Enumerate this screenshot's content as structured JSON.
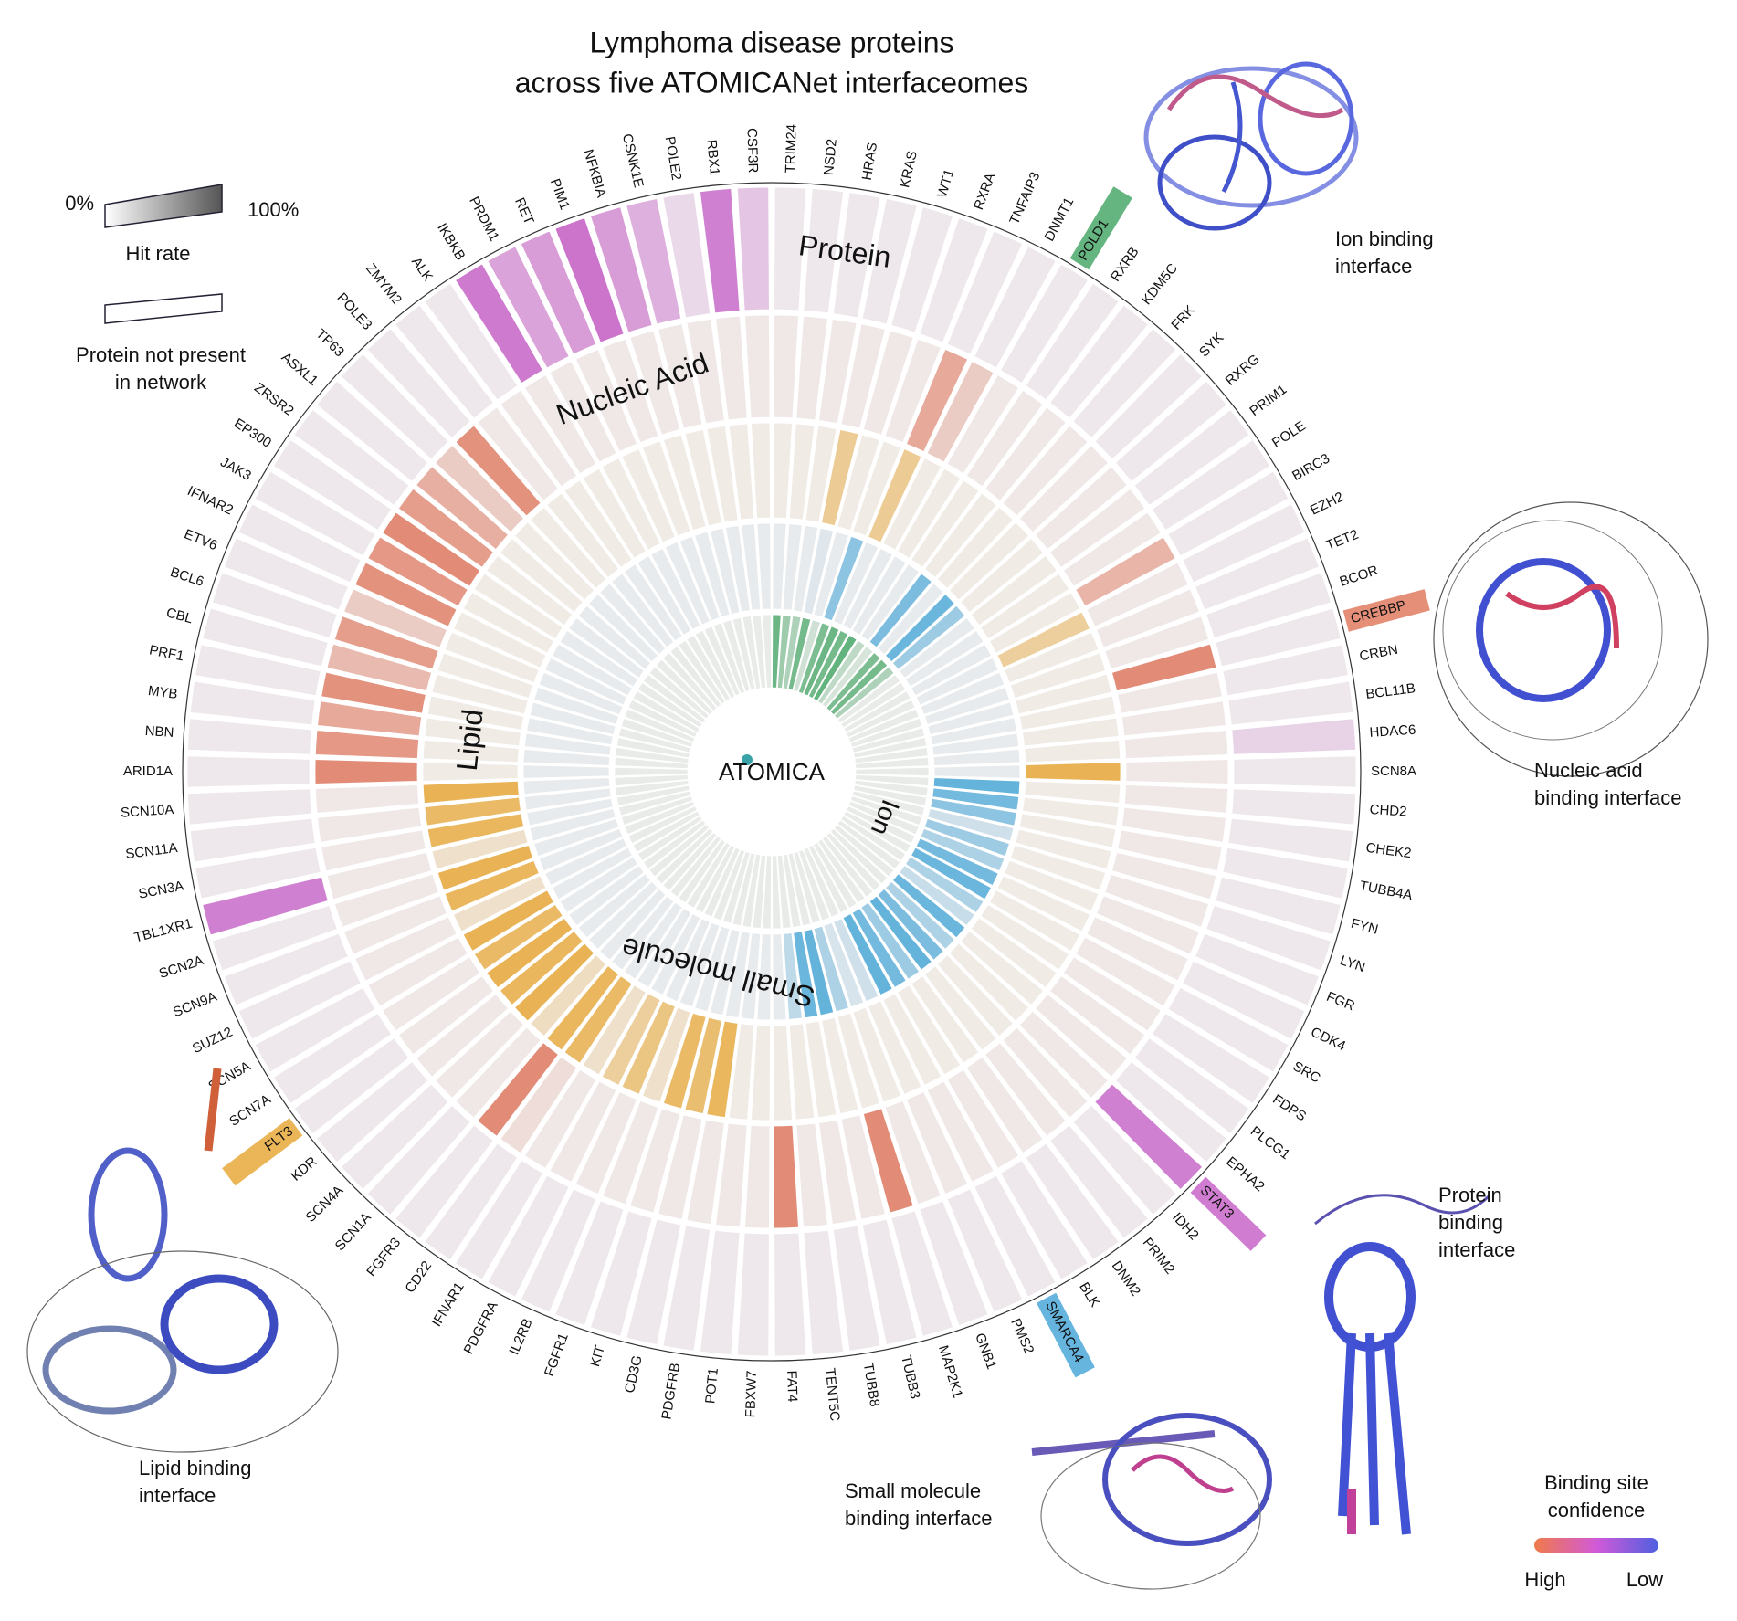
{
  "chart_data": {
    "type": "radial_heatmap",
    "title": [
      "Lymphoma disease proteins",
      "across five ATOMICANet interfaceomes"
    ],
    "center_label": "ATOMICA",
    "categories": [
      "TRIM24",
      "NSD2",
      "HRAS",
      "KRAS",
      "WT1",
      "RXRA",
      "TNFAIP3",
      "DNMT1",
      "POLD1",
      "RXRB",
      "KDM5C",
      "FRK",
      "SYK",
      "RXRG",
      "PRIM1",
      "POLE",
      "BIRC3",
      "EZH2",
      "TET2",
      "BCOR",
      "CREBBP",
      "CRBN",
      "BCL11B",
      "HDAC6",
      "SCN8A",
      "CHD2",
      "CHEK2",
      "TUBB4A",
      "FYN",
      "LYN",
      "FGR",
      "CDK4",
      "SRC",
      "FDPS",
      "PLCG1",
      "EPHA2",
      "STAT3",
      "IDH2",
      "PRIM2",
      "DNM2",
      "BLK",
      "SMARCA4",
      "PMS2",
      "GNB1",
      "MAP2K1",
      "TUBB3",
      "TUBB8",
      "TENT5C",
      "FAT4",
      "FBXW7",
      "POT1",
      "PDGFRB",
      "CD3G",
      "KIT",
      "FGFR1",
      "IL2RB",
      "PDGFRA",
      "IFNAR1",
      "CD22",
      "FGFR3",
      "SCN1A",
      "SCN4A",
      "KDR",
      "FLT3",
      "SCN7A",
      "SCN5A",
      "SUZ12",
      "SCN9A",
      "SCN2A",
      "TBL1XR1",
      "SCN3A",
      "SCN11A",
      "SCN10A",
      "ARID1A",
      "NBN",
      "MYB",
      "PRF1",
      "CBL",
      "BCL6",
      "ETV6",
      "IFNAR2",
      "JAK3",
      "EP300",
      "ZRSR2",
      "ASXL1",
      "TP63",
      "POLE3",
      "ZMYM2",
      "ALK",
      "IKBKB",
      "PRDM1",
      "RET",
      "PIM1",
      "NFKBIA",
      "CSNK1E",
      "POLE2",
      "RBX1",
      "CSF3R"
    ],
    "series": [
      {
        "name": "Ion",
        "color": "#4aa86a",
        "values": [
          80,
          50,
          40,
          75,
          20,
          70,
          80,
          75,
          85,
          30,
          15,
          70,
          75,
          40,
          5,
          5,
          5,
          5,
          5,
          5,
          5,
          5,
          5,
          5,
          5,
          5,
          5,
          5,
          5,
          5,
          5,
          5,
          5,
          5,
          5,
          5,
          5,
          5,
          5,
          5,
          5,
          5,
          5,
          5,
          5,
          5,
          5,
          5,
          5,
          5,
          5,
          5,
          5,
          5,
          5,
          5,
          5,
          5,
          5,
          5,
          5,
          5,
          5,
          5,
          5,
          5,
          5,
          5,
          5,
          5,
          5,
          5,
          5,
          5,
          5,
          5,
          5,
          5,
          5,
          5,
          5,
          5,
          5,
          5,
          5,
          5,
          5,
          5,
          5,
          5,
          5,
          5,
          5,
          5,
          5,
          5,
          5,
          5
        ]
      },
      {
        "name": "Small molecule",
        "color": "#4aa8d8",
        "values": [
          5,
          5,
          5,
          10,
          5,
          60,
          5,
          5,
          5,
          5,
          70,
          5,
          80,
          50,
          5,
          5,
          5,
          5,
          5,
          5,
          5,
          5,
          5,
          5,
          5,
          85,
          75,
          60,
          20,
          50,
          40,
          75,
          80,
          40,
          25,
          80,
          40,
          70,
          85,
          50,
          75,
          85,
          20,
          15,
          40,
          85,
          80,
          30,
          5,
          5,
          5,
          5,
          5,
          5,
          5,
          5,
          5,
          5,
          5,
          5,
          5,
          5,
          5,
          5,
          5,
          5,
          5,
          5,
          5,
          5,
          5,
          5,
          5,
          5,
          5,
          5,
          5,
          5,
          5,
          5,
          5,
          5,
          5,
          5,
          5,
          5,
          5,
          5,
          5,
          5,
          5,
          5,
          5,
          5,
          5,
          5,
          5,
          5
        ]
      },
      {
        "name": "Lipid",
        "color": "#e8a93a",
        "values": [
          5,
          5,
          5,
          50,
          5,
          5,
          50,
          5,
          5,
          5,
          5,
          5,
          5,
          5,
          5,
          5,
          5,
          45,
          5,
          5,
          5,
          5,
          5,
          5,
          85,
          5,
          5,
          5,
          5,
          5,
          5,
          5,
          5,
          5,
          5,
          5,
          5,
          5,
          5,
          5,
          5,
          5,
          5,
          5,
          5,
          5,
          5,
          5,
          5,
          5,
          5,
          80,
          70,
          75,
          20,
          60,
          45,
          20,
          75,
          80,
          25,
          85,
          80,
          85,
          75,
          85,
          20,
          80,
          85,
          20,
          80,
          75,
          85,
          5,
          5,
          5,
          5,
          5,
          5,
          5,
          5,
          5,
          5,
          5,
          5,
          5,
          5,
          5,
          5,
          5,
          5,
          5,
          5,
          5,
          5,
          5,
          5,
          5
        ]
      },
      {
        "name": "Nucleic Acid",
        "color": "#e07b62",
        "values": [
          5,
          5,
          5,
          5,
          5,
          5,
          60,
          30,
          5,
          5,
          5,
          5,
          5,
          5,
          5,
          5,
          50,
          5,
          5,
          5,
          85,
          5,
          5,
          5,
          5,
          5,
          5,
          5,
          5,
          5,
          5,
          5,
          5,
          5,
          5,
          5,
          5,
          5,
          5,
          5,
          5,
          5,
          5,
          5,
          85,
          5,
          5,
          5,
          85,
          5,
          5,
          5,
          5,
          5,
          5,
          5,
          5,
          5,
          15,
          85,
          5,
          5,
          5,
          5,
          5,
          5,
          5,
          5,
          5,
          5,
          5,
          5,
          5,
          85,
          75,
          60,
          80,
          45,
          70,
          30,
          80,
          75,
          85,
          70,
          55,
          30,
          80,
          5,
          5,
          5,
          5,
          5,
          5,
          5,
          5,
          5,
          5,
          5
        ]
      },
      {
        "name": "Protein",
        "color": "#c865c8",
        "values": [
          5,
          5,
          5,
          5,
          5,
          5,
          5,
          5,
          5,
          5,
          5,
          5,
          5,
          5,
          5,
          5,
          5,
          5,
          5,
          5,
          5,
          5,
          5,
          20,
          5,
          5,
          5,
          5,
          5,
          5,
          5,
          5,
          5,
          5,
          5,
          5,
          80,
          5,
          5,
          5,
          5,
          5,
          5,
          5,
          5,
          5,
          5,
          5,
          5,
          5,
          5,
          5,
          5,
          5,
          5,
          5,
          5,
          5,
          5,
          5,
          5,
          5,
          5,
          5,
          5,
          5,
          5,
          5,
          5,
          80,
          5,
          5,
          5,
          5,
          5,
          5,
          5,
          5,
          5,
          5,
          5,
          5,
          5,
          5,
          5,
          5,
          5,
          5,
          5,
          85,
          55,
          60,
          90,
          60,
          45,
          15,
          80,
          30
        ]
      }
    ],
    "hit_rate_legend": {
      "title": "Hit rate",
      "ticks": [
        {
          "value": 0,
          "label": "0%"
        },
        {
          "value": 100,
          "label": "100%"
        }
      ],
      "not_present": [
        "Protein not present",
        "in network"
      ]
    },
    "confidence_legend": {
      "title": [
        "Binding site",
        "confidence"
      ],
      "high": "High",
      "low": "Low"
    },
    "captions": {
      "ion": [
        "Ion binding",
        "interface"
      ],
      "nucleic_acid": [
        "Nucleic acid",
        "binding interface"
      ],
      "protein": [
        "Protein",
        "binding",
        "interface"
      ],
      "small_molecule": [
        "Small molecule",
        "binding interface"
      ],
      "lipid": [
        "Lipid binding",
        "interface"
      ]
    }
  }
}
